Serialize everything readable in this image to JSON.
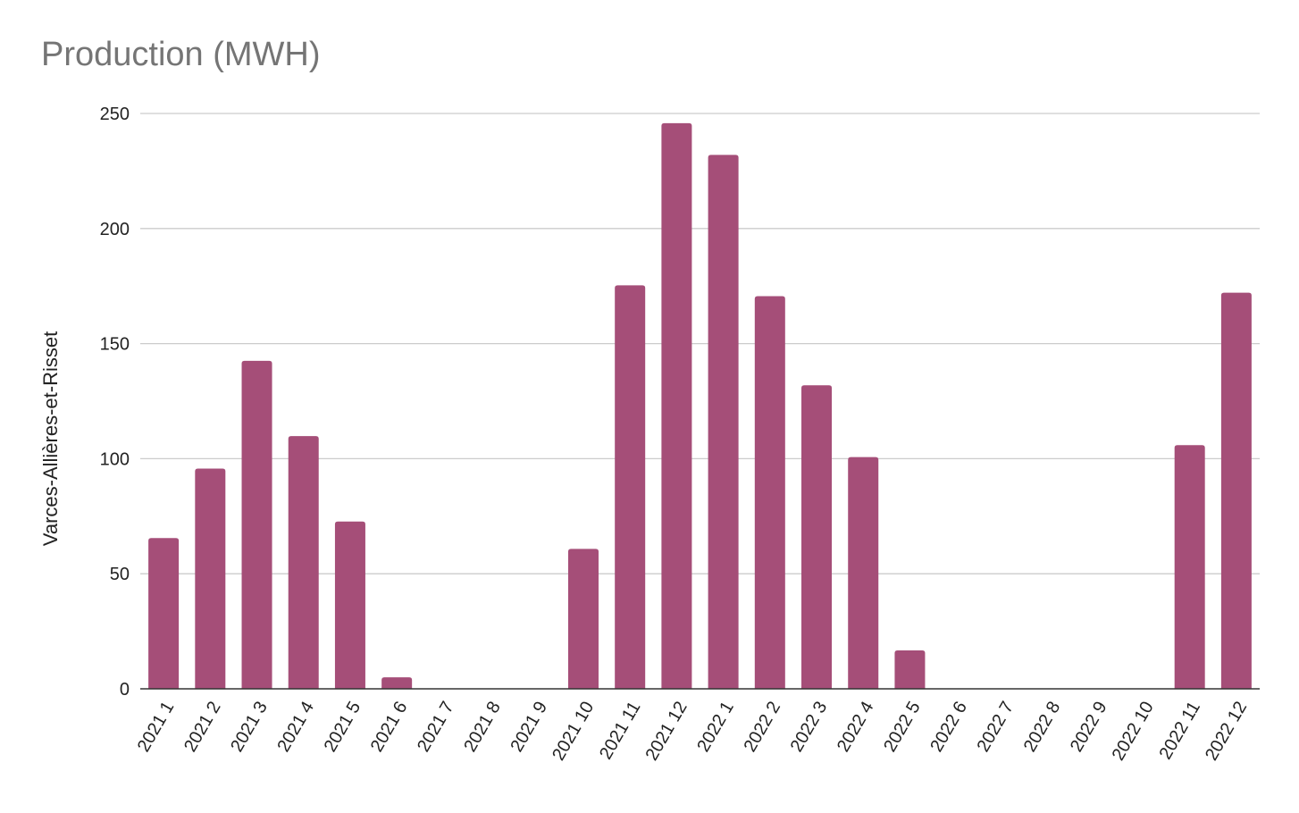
{
  "chart_data": {
    "type": "bar",
    "title": "Production (MWH)",
    "xlabel": "",
    "ylabel": "Varces-Allières-et-Risset",
    "ylim": [
      0,
      250
    ],
    "yticks": [
      0,
      50,
      100,
      150,
      200,
      250
    ],
    "grid": true,
    "legend": "none",
    "bar_color": "#a54e78",
    "categories": [
      "2021 1",
      "2021 2",
      "2021 3",
      "2021 4",
      "2021 5",
      "2021 6",
      "2021 7",
      "2021 8",
      "2021 9",
      "2021 10",
      "2021 11",
      "2021 12",
      "2022 1",
      "2022 2",
      "2022 3",
      "2022 4",
      "2022 5",
      "2022 6",
      "2022 7",
      "2022 8",
      "2022 9",
      "2022 10",
      "2022 11",
      "2022 12"
    ],
    "values": [
      65.5,
      95.7,
      142.5,
      109.8,
      72.7,
      5.0,
      0,
      0,
      0,
      60.8,
      175.3,
      245.8,
      232.0,
      170.6,
      131.9,
      100.7,
      16.7,
      0,
      0,
      0,
      0,
      0,
      105.9,
      172.1
    ]
  }
}
